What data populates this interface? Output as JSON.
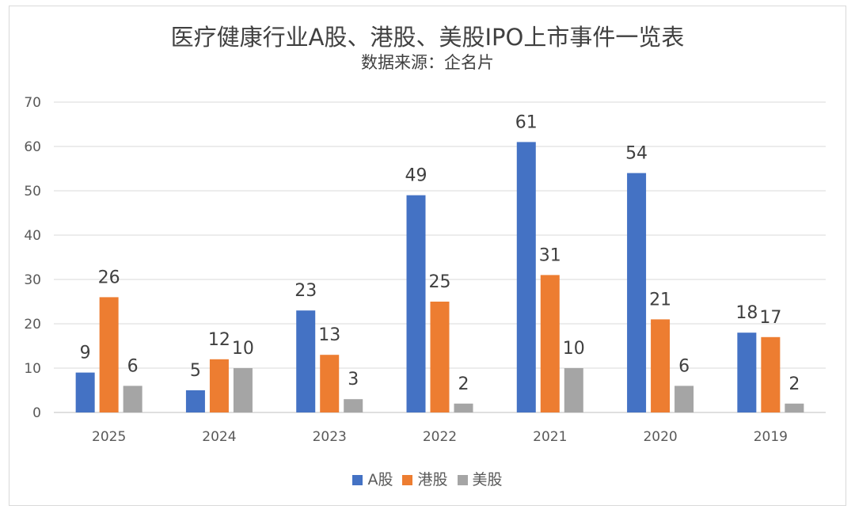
{
  "title": "医疗健康行业A股、港股、美股IPO上市事件一览表",
  "subtitle": "数据来源：企名片",
  "chart_data": {
    "type": "bar",
    "categories": [
      "2025",
      "2024",
      "2023",
      "2022",
      "2021",
      "2020",
      "2019"
    ],
    "series": [
      {
        "name": "A股",
        "color": "#4472c4",
        "values": [
          9,
          5,
          23,
          49,
          61,
          54,
          18
        ]
      },
      {
        "name": "港股",
        "color": "#ed7d31",
        "values": [
          26,
          12,
          13,
          25,
          31,
          21,
          17
        ]
      },
      {
        "name": "美股",
        "color": "#a5a5a5",
        "values": [
          6,
          10,
          3,
          2,
          10,
          6,
          2
        ]
      }
    ],
    "ylim": [
      0,
      70
    ],
    "yticks": [
      0,
      10,
      20,
      30,
      40,
      50,
      60,
      70
    ],
    "gridlines": true,
    "legend_position": "bottom"
  }
}
